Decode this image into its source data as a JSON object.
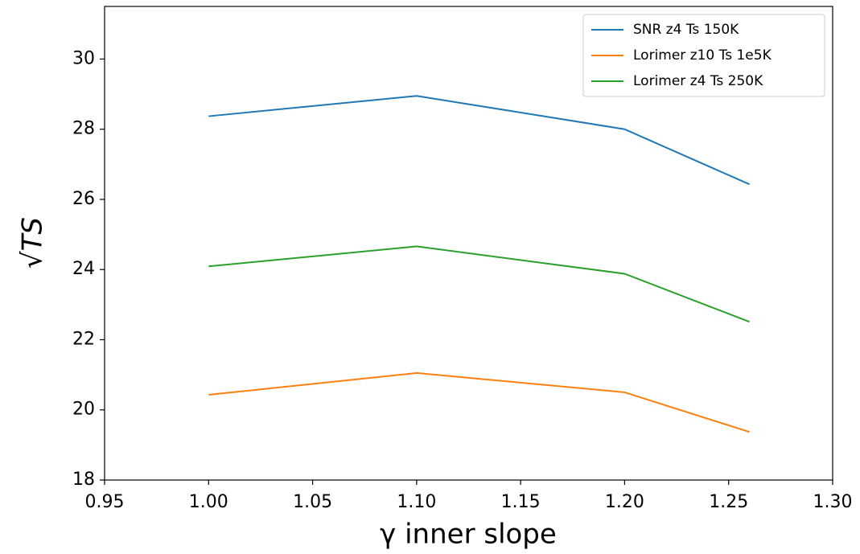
{
  "chart_data": {
    "type": "line",
    "x": [
      1.0,
      1.1,
      1.2,
      1.26
    ],
    "series": [
      {
        "name": "SNR z4 Ts 150K",
        "color": "#1f77b4",
        "values": [
          28.37,
          28.95,
          28.0,
          26.43
        ]
      },
      {
        "name": "Lorimer z10 Ts 1e5K",
        "color": "#ff7f0e",
        "values": [
          20.43,
          21.05,
          20.5,
          19.37
        ]
      },
      {
        "name": "Lorimer z4 Ts 250K",
        "color": "#2ca02c",
        "values": [
          24.09,
          24.66,
          23.88,
          22.51
        ]
      }
    ],
    "xlabel": "γ inner slope",
    "ylabel": "√TS",
    "xlim": [
      0.95,
      1.3
    ],
    "ylim": [
      18,
      31.5
    ],
    "xticks": [
      {
        "value": 0.95,
        "label": "0.95"
      },
      {
        "value": 1.0,
        "label": "1.00"
      },
      {
        "value": 1.05,
        "label": "1.05"
      },
      {
        "value": 1.1,
        "label": "1.10"
      },
      {
        "value": 1.15,
        "label": "1.15"
      },
      {
        "value": 1.2,
        "label": "1.20"
      },
      {
        "value": 1.25,
        "label": "1.25"
      },
      {
        "value": 1.3,
        "label": "1.30"
      }
    ],
    "yticks": [
      18,
      20,
      22,
      24,
      26,
      28,
      30
    ],
    "legend": "upper right",
    "grid": false
  }
}
